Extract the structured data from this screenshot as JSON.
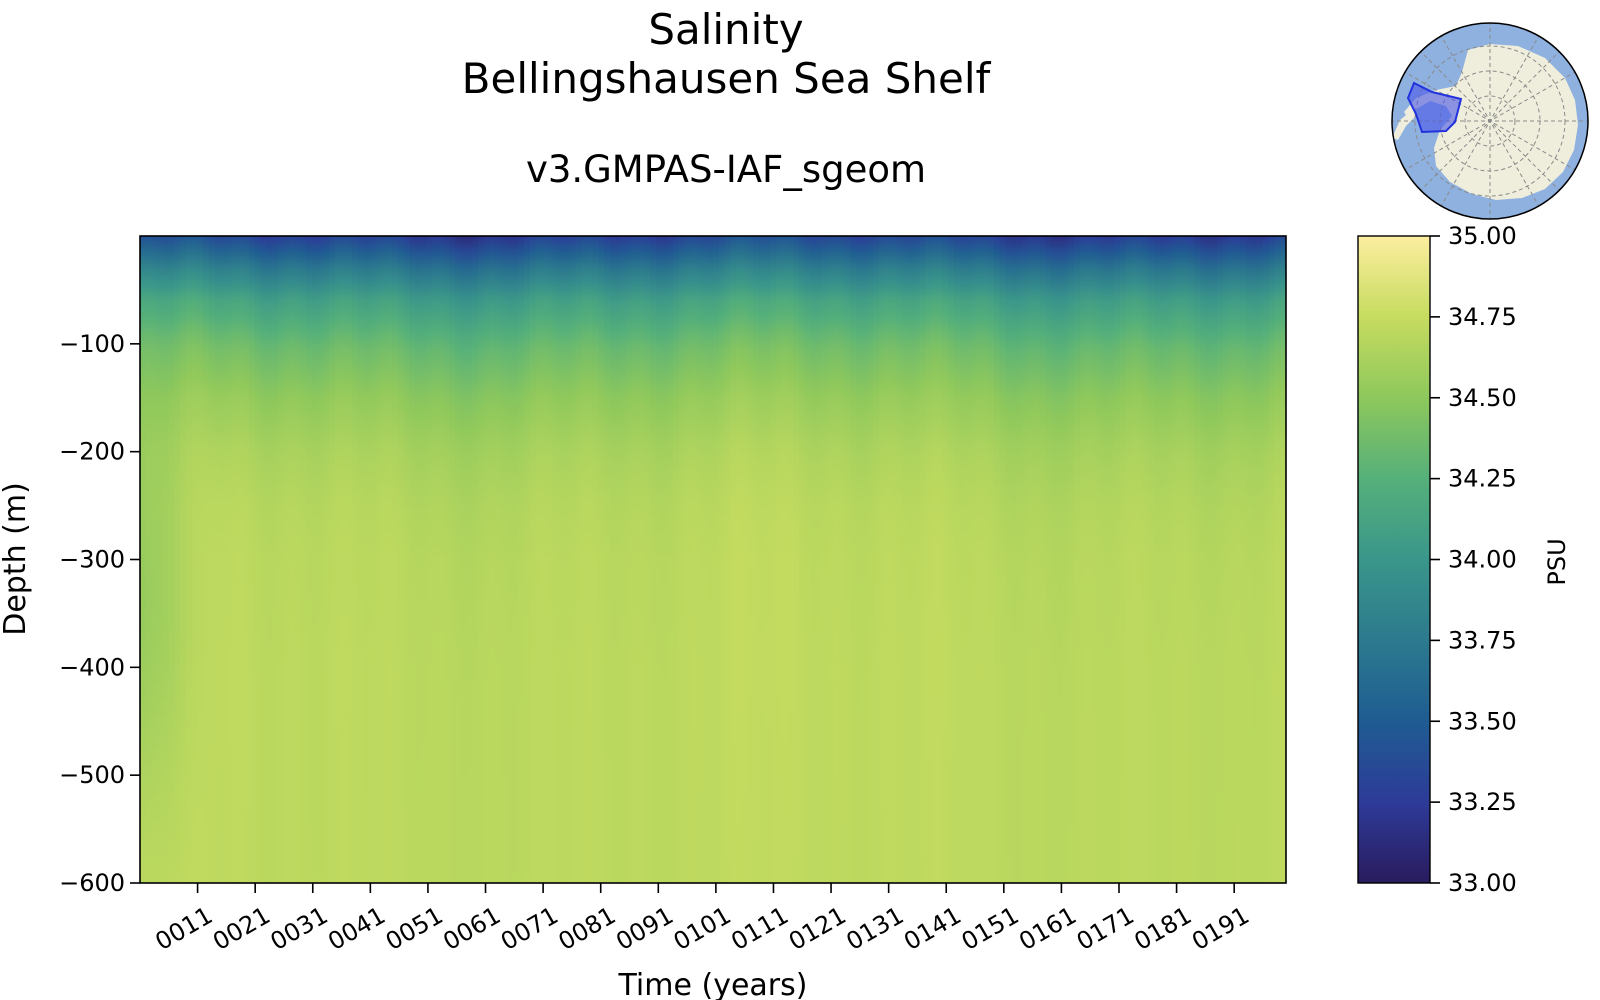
{
  "chart_data": {
    "type": "heatmap",
    "title": "Salinity",
    "subtitle_region": "Bellingshausen Sea Shelf",
    "subtitle_run": "v3.GMPAS-IAF_sgeom",
    "xlabel": "Time (years)",
    "ylabel": "Depth (m)",
    "xlim": [
      1,
      200
    ],
    "ylim": [
      -600,
      0
    ],
    "x_ticks": [
      {
        "value": 11,
        "label": "0011"
      },
      {
        "value": 21,
        "label": "0021"
      },
      {
        "value": 31,
        "label": "0031"
      },
      {
        "value": 41,
        "label": "0041"
      },
      {
        "value": 51,
        "label": "0051"
      },
      {
        "value": 61,
        "label": "0061"
      },
      {
        "value": 71,
        "label": "0071"
      },
      {
        "value": 81,
        "label": "0081"
      },
      {
        "value": 91,
        "label": "0091"
      },
      {
        "value": 101,
        "label": "0101"
      },
      {
        "value": 111,
        "label": "0111"
      },
      {
        "value": 121,
        "label": "0121"
      },
      {
        "value": 131,
        "label": "0131"
      },
      {
        "value": 141,
        "label": "0141"
      },
      {
        "value": 151,
        "label": "0151"
      },
      {
        "value": 161,
        "label": "0161"
      },
      {
        "value": 171,
        "label": "0171"
      },
      {
        "value": 181,
        "label": "0181"
      },
      {
        "value": 191,
        "label": "0191"
      }
    ],
    "y_ticks": [
      {
        "value": -100,
        "label": "−100"
      },
      {
        "value": -200,
        "label": "−200"
      },
      {
        "value": -300,
        "label": "−300"
      },
      {
        "value": -400,
        "label": "−400"
      },
      {
        "value": -500,
        "label": "−500"
      },
      {
        "value": -600,
        "label": "−600"
      }
    ],
    "colorbar": {
      "label": "PSU",
      "range": [
        33.0,
        35.0
      ],
      "ticks": [
        {
          "value": 35.0,
          "label": "35.00"
        },
        {
          "value": 34.75,
          "label": "34.75"
        },
        {
          "value": 34.5,
          "label": "34.50"
        },
        {
          "value": 34.25,
          "label": "34.25"
        },
        {
          "value": 34.0,
          "label": "34.00"
        },
        {
          "value": 33.75,
          "label": "33.75"
        },
        {
          "value": 33.5,
          "label": "33.50"
        },
        {
          "value": 33.25,
          "label": "33.25"
        },
        {
          "value": 33.0,
          "label": "33.00"
        }
      ],
      "colormap": [
        "#2a1b5e",
        "#2d3b98",
        "#1f5c92",
        "#2c7a8e",
        "#3a968a",
        "#55b07a",
        "#8ec85c",
        "#c6dc5f",
        "#fdeea0"
      ]
    },
    "salinity_profile": {
      "depths": [
        0,
        -30,
        -60,
        -100,
        -150,
        -200,
        -250,
        -300,
        -400,
        -500,
        -600
      ],
      "mean_psu": [
        33.3,
        33.75,
        34.1,
        34.35,
        34.52,
        34.63,
        34.68,
        34.7,
        34.71,
        34.71,
        34.71
      ]
    },
    "inset_map": {
      "name": "Antarctica region map",
      "ocean_color": "#8fb1e0",
      "land_color": "#efeedc",
      "region_color": "#4a55e6"
    }
  }
}
